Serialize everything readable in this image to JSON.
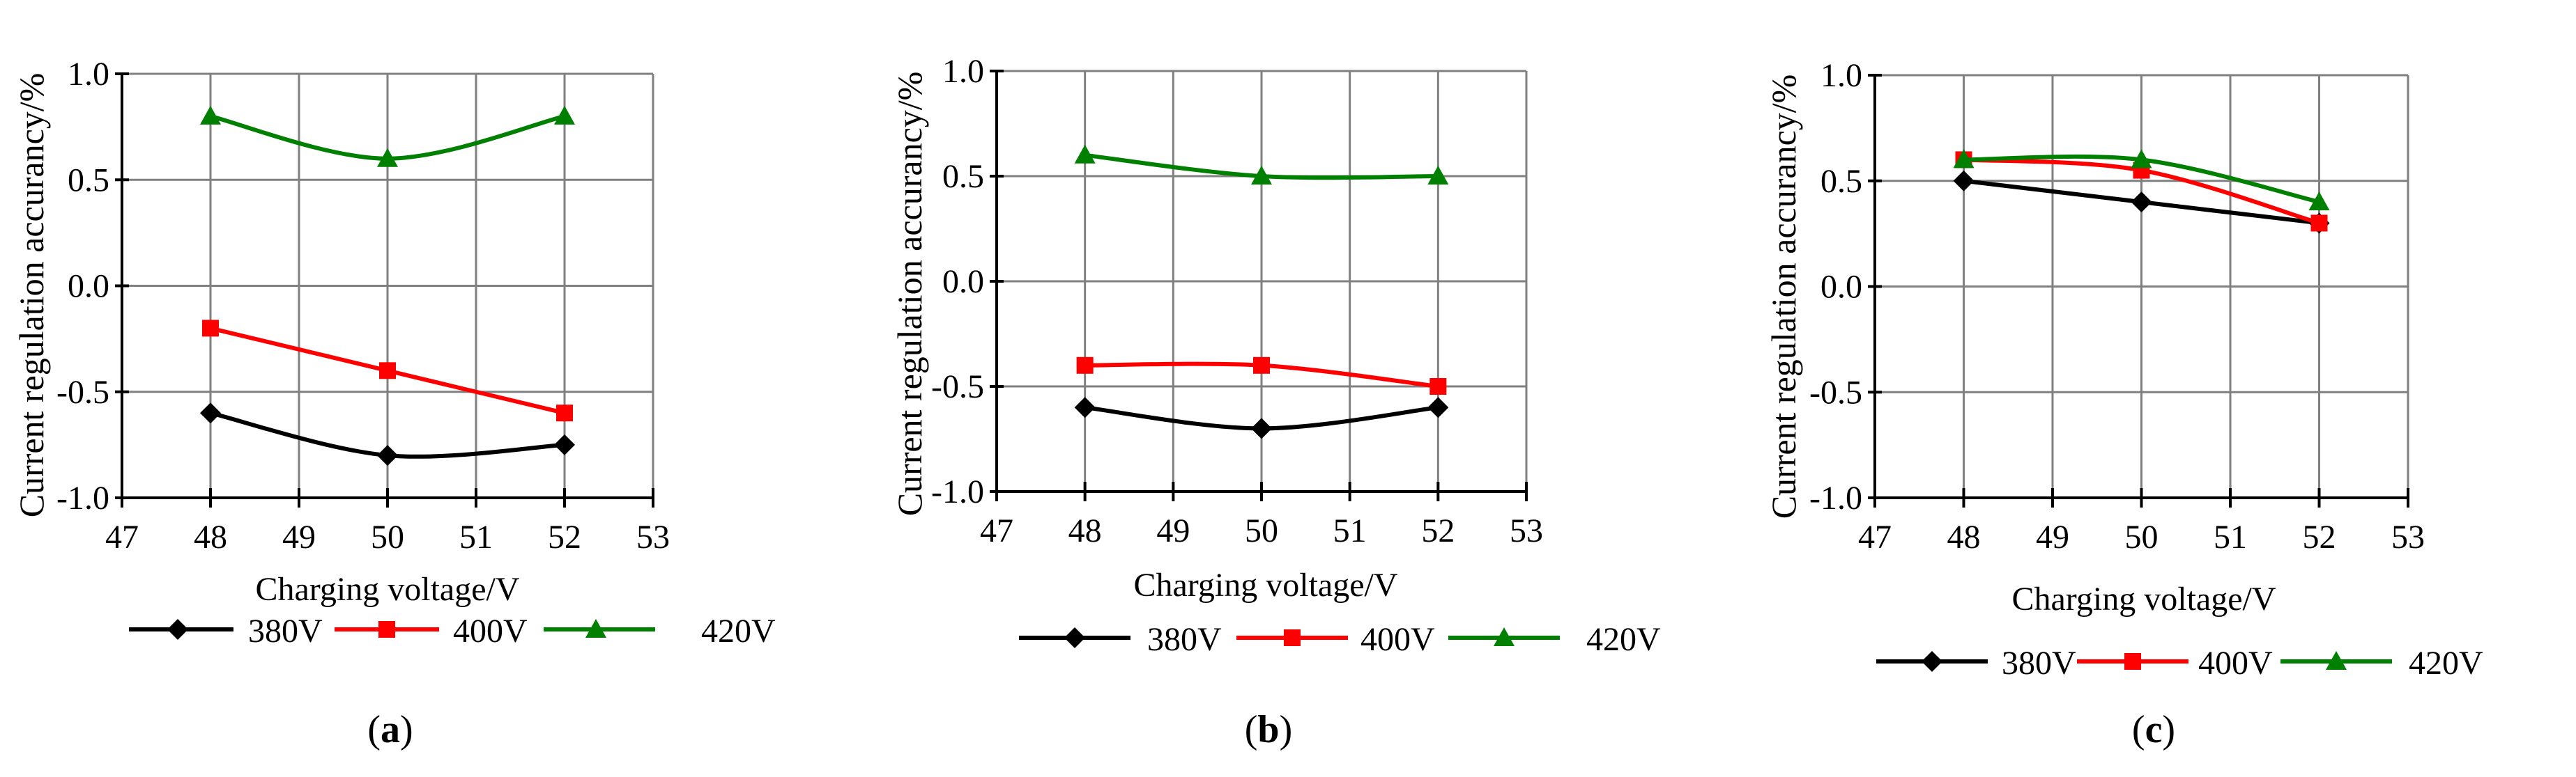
{
  "figure": {
    "panels": [
      {
        "label_open": "(",
        "label_letter": "a",
        "label_close": ")"
      },
      {
        "label_open": "(",
        "label_letter": "b",
        "label_close": ")"
      },
      {
        "label_open": "(",
        "label_letter": "c",
        "label_close": ")"
      }
    ]
  },
  "colors": {
    "380V": "#000000",
    "400V": "#ff0000",
    "420V": "#008000",
    "grid": "#808080",
    "axis": "#000000"
  },
  "chart_data": [
    {
      "type": "line",
      "panel": "a",
      "xlabel": "Charging voltage/V",
      "ylabel": "Current regulation accurancy/%",
      "xlim": [
        47,
        53
      ],
      "ylim": [
        -1.0,
        1.0
      ],
      "xticks": [
        "47",
        "48",
        "49",
        "50",
        "51",
        "52",
        "53"
      ],
      "yticks": [
        "-1.0",
        "-0.5",
        "0.0",
        "0.5",
        "1.0"
      ],
      "grid": true,
      "legend_position": "bottom",
      "x": [
        48,
        50,
        52
      ],
      "series": [
        {
          "name": "380V",
          "marker": "diamond",
          "values": [
            -0.6,
            -0.8,
            -0.75
          ]
        },
        {
          "name": "400V",
          "marker": "square",
          "values": [
            -0.2,
            -0.4,
            -0.6
          ]
        },
        {
          "name": "420V",
          "marker": "triangle",
          "values": [
            0.8,
            0.6,
            0.8
          ]
        }
      ]
    },
    {
      "type": "line",
      "panel": "b",
      "xlabel": "Charging voltage/V",
      "ylabel": "Current regulation accurancy/%",
      "xlim": [
        47,
        53
      ],
      "ylim": [
        -1.0,
        1.0
      ],
      "xticks": [
        "47",
        "48",
        "49",
        "50",
        "51",
        "52",
        "53"
      ],
      "yticks": [
        "-1.0",
        "-0.5",
        "0.0",
        "0.5",
        "1.0"
      ],
      "grid": true,
      "legend_position": "bottom",
      "x": [
        48,
        50,
        52
      ],
      "series": [
        {
          "name": "380V",
          "marker": "diamond",
          "values": [
            -0.6,
            -0.7,
            -0.6
          ]
        },
        {
          "name": "400V",
          "marker": "square",
          "values": [
            -0.4,
            -0.4,
            -0.5
          ]
        },
        {
          "name": "420V",
          "marker": "triangle",
          "values": [
            0.6,
            0.5,
            0.5
          ]
        }
      ]
    },
    {
      "type": "line",
      "panel": "c",
      "xlabel": "Charging voltage/V",
      "ylabel": "Current regulation accurancy/%",
      "xlim": [
        47,
        53
      ],
      "ylim": [
        -1.0,
        1.0
      ],
      "xticks": [
        "47",
        "48",
        "49",
        "50",
        "51",
        "52",
        "53"
      ],
      "yticks": [
        "-1.0",
        "-0.5",
        "0.0",
        "0.5",
        "1.0"
      ],
      "grid": true,
      "legend_position": "bottom",
      "x": [
        48,
        50,
        52
      ],
      "series": [
        {
          "name": "380V",
          "marker": "diamond",
          "values": [
            0.5,
            0.4,
            0.3
          ]
        },
        {
          "name": "400V",
          "marker": "square",
          "values": [
            0.6,
            0.55,
            0.3
          ]
        },
        {
          "name": "420V",
          "marker": "triangle",
          "values": [
            0.6,
            0.6,
            0.4
          ]
        }
      ]
    }
  ]
}
